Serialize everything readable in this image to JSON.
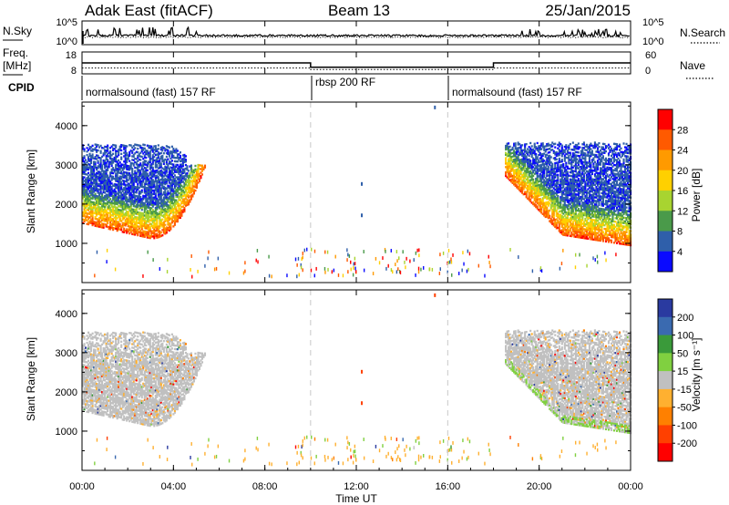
{
  "header": {
    "title_left": "Adak East (fitACF)",
    "title_center": "Beam 13",
    "title_right": "25/Jan/2015"
  },
  "noise_panel": {
    "left_label": "N.Sky",
    "left_ticks": [
      "10^5",
      "10^0"
    ],
    "right_label": "N.Search",
    "right_ticks": [
      "10^5",
      "10^0"
    ]
  },
  "freq_panel": {
    "left_label_line1": "Freq.",
    "left_label_line2": "[MHz]",
    "left_ticks": [
      "18",
      "8"
    ],
    "right_label": "Nave",
    "right_ticks": [
      "60",
      "0"
    ]
  },
  "cpid_panel": {
    "label": "CPID",
    "segments": [
      {
        "name": "normalsound (fast) 157 RF",
        "start": "00:00",
        "end": "10:00"
      },
      {
        "name": "rbsp 200 RF",
        "start": "10:00",
        "end": "16:00"
      },
      {
        "name": "normalsound (fast) 157 RF",
        "start": "16:00",
        "end": "24:00"
      }
    ]
  },
  "power_panel": {
    "ylabel": "Slant Range [km]",
    "colorbar_label": "Power [dB]",
    "colorbar_ticks": [
      "28",
      "24",
      "20",
      "16",
      "12",
      "8",
      "4"
    ],
    "colorbar_colors": [
      "#ff0000",
      "#ff5a00",
      "#ff9a00",
      "#ffd000",
      "#a8d430",
      "#4a9a4a",
      "#2f5faa",
      "#0a0aff"
    ]
  },
  "velocity_panel": {
    "ylabel": "Slant Range [km]",
    "colorbar_label": "Velocity [m s⁻¹]",
    "colorbar_ticks": [
      "200",
      "100",
      "50",
      "15",
      "-15",
      "-50",
      "-100",
      "-200"
    ],
    "colorbar_colors": [
      "#2a3aa0",
      "#3a6ab0",
      "#3a9a3a",
      "#80d040",
      "#c0c0c0",
      "#ffb030",
      "#ff8000",
      "#ff4000",
      "#ff0000"
    ],
    "ground_scatter_color": "#c0c0c0"
  },
  "chart_data": {
    "type": "heatmap",
    "title": "Adak East (fitACF)",
    "xlabel": "Time UT",
    "ylabel": "Slant Range [km]",
    "x_ticks": [
      "00:00",
      "04:00",
      "08:00",
      "12:00",
      "16:00",
      "20:00",
      "00:00"
    ],
    "y_ticks": [
      1000,
      2000,
      3000,
      4000
    ],
    "xlim_hours": [
      0,
      24
    ],
    "ylim_km": [
      0,
      4600
    ],
    "mode_boundaries_hours": [
      10,
      16
    ],
    "freq_mhz": [
      {
        "start_h": 0,
        "end_h": 10,
        "value": 13
      },
      {
        "start_h": 10,
        "end_h": 18,
        "value": 11
      },
      {
        "start_h": 18,
        "end_h": 24,
        "value": 13
      }
    ],
    "nave": [
      {
        "start_h": 0,
        "end_h": 10,
        "value": 16
      },
      {
        "start_h": 10,
        "end_h": 18,
        "value": 12
      },
      {
        "start_h": 18,
        "end_h": 24,
        "value": 16
      }
    ],
    "series": [
      {
        "name": "Power [dB]",
        "regions": [
          {
            "t_start_h": 0.0,
            "t_end_h": 5.5,
            "range_min_km": 1000,
            "range_max_km": 3500,
            "peak_db": 30
          },
          {
            "t_start_h": 18.5,
            "t_end_h": 24.0,
            "range_min_km": 900,
            "range_max_km": 3500,
            "peak_db": 30
          }
        ]
      },
      {
        "name": "Velocity [m s⁻¹]",
        "regions": [
          {
            "t_start_h": 0.0,
            "t_end_h": 5.5,
            "range_min_km": 1000,
            "range_max_km": 3500,
            "dominant": "ground scatter"
          },
          {
            "t_start_h": 18.5,
            "t_end_h": 24.0,
            "range_min_km": 900,
            "range_max_km": 3500,
            "dominant": "ground scatter"
          }
        ]
      }
    ]
  }
}
